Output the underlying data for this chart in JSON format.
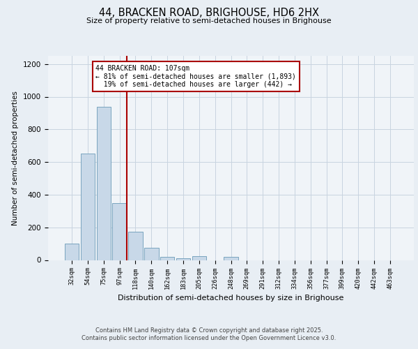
{
  "title_line1": "44, BRACKEN ROAD, BRIGHOUSE, HD6 2HX",
  "title_line2": "Size of property relative to semi-detached houses in Brighouse",
  "xlabel": "Distribution of semi-detached houses by size in Brighouse",
  "ylabel": "Number of semi-detached properties",
  "bar_color": "#c8d8e8",
  "bar_edge_color": "#6a9ab8",
  "annotation_line_color": "#aa0000",
  "background_color": "#e8eef4",
  "plot_bg_color": "#f0f4f8",
  "grid_color": "#c8d4e0",
  "categories": [
    "32sqm",
    "54sqm",
    "75sqm",
    "97sqm",
    "118sqm",
    "140sqm",
    "162sqm",
    "183sqm",
    "205sqm",
    "226sqm",
    "248sqm",
    "269sqm",
    "291sqm",
    "312sqm",
    "334sqm",
    "356sqm",
    "377sqm",
    "399sqm",
    "420sqm",
    "442sqm",
    "463sqm"
  ],
  "values": [
    100,
    650,
    940,
    350,
    175,
    75,
    20,
    10,
    25,
    0,
    20,
    0,
    0,
    0,
    0,
    0,
    0,
    0,
    0,
    0,
    0
  ],
  "property_label": "44 BRACKEN ROAD: 107sqm",
  "pct_smaller": 81,
  "pct_smaller_n": "1,893",
  "pct_larger": 19,
  "pct_larger_n": "442",
  "ylim": [
    0,
    1250
  ],
  "yticks": [
    0,
    200,
    400,
    600,
    800,
    1000,
    1200
  ],
  "red_line_bar_index": 3,
  "footer_line1": "Contains HM Land Registry data © Crown copyright and database right 2025.",
  "footer_line2": "Contains public sector information licensed under the Open Government Licence v3.0."
}
